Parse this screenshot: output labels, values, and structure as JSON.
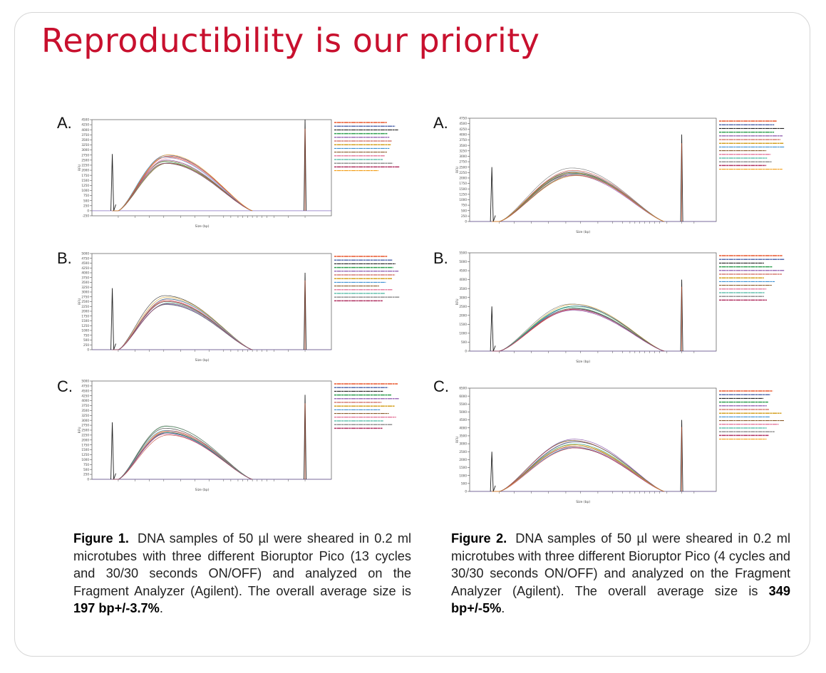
{
  "title": "Reproductibility is our priority",
  "colors": {
    "title": "#c8102e",
    "axis": "#555555",
    "peak": "#222222",
    "palette": [
      "#e8552a",
      "#1f3a93",
      "#222222",
      "#2e9e4f",
      "#7b3fa0",
      "#c0392b",
      "#d4a020",
      "#3b8fd1",
      "#8a5a2b",
      "#e67ea0",
      "#16a085",
      "#6b6b6b",
      "#b03060",
      "#f39c12"
    ]
  },
  "figures": [
    {
      "caption": {
        "label": "Figure 1.",
        "text_before": "DNA samples of 50 µl were sheared in 0.2 ml microtubes with three different Bioruptor Pico (13 cycles and 30/30 seconds ON/OFF) and analyzed on the Fragment Analyzer (Agilent). The overall average size is ",
        "highlight": "197 bp+/-3.7%",
        "text_after": "."
      },
      "panels": [
        {
          "label": "A."
        },
        {
          "label": "B."
        },
        {
          "label": "C."
        }
      ]
    },
    {
      "caption": {
        "label": "Figure 2.",
        "text_before": "DNA samples of 50 µl were sheared in 0.2 ml microtubes with three different Bioruptor Pico (4 cycles and 30/30 seconds ON/OFF) and analyzed on the Fragment Analyzer (Agilent). The overall average size is ",
        "highlight": "349 bp+/-5%",
        "text_after": "."
      },
      "panels": [
        {
          "label": "A."
        },
        {
          "label": "B."
        },
        {
          "label": "C."
        }
      ]
    }
  ],
  "chart_data": [
    {
      "type": "line",
      "figure": "Figure 1",
      "panel": "A.",
      "ylabel": "RFU",
      "xlabel": "Size (bp)",
      "ylim": [
        -250,
        4500
      ],
      "y_ticks": [
        -250,
        0,
        250,
        500,
        750,
        1000,
        1250,
        1500,
        1750,
        2000,
        2250,
        2500,
        2750,
        3000,
        3250,
        3500,
        3750,
        4000,
        4250,
        4500
      ],
      "lower_marker_peak": 2800,
      "upper_marker_peak": 4500,
      "smear_peak": 2550,
      "sample_count": 14
    },
    {
      "type": "line",
      "figure": "Figure 1",
      "panel": "B.",
      "ylabel": "RFU",
      "xlabel": "Size (bp)",
      "ylim": [
        0,
        5000
      ],
      "y_ticks": [
        0,
        250,
        500,
        750,
        1000,
        1250,
        1500,
        1750,
        2000,
        2250,
        2500,
        2750,
        3000,
        3250,
        3500,
        3750,
        4000,
        4250,
        4500,
        4750,
        5000
      ],
      "lower_marker_peak": 3200,
      "upper_marker_peak": 4000,
      "smear_peak": 2600,
      "sample_count": 13
    },
    {
      "type": "line",
      "figure": "Figure 1",
      "panel": "C.",
      "ylabel": "RFU",
      "xlabel": "Size (bp)",
      "ylim": [
        0,
        5000
      ],
      "y_ticks": [
        0,
        250,
        500,
        750,
        1000,
        1250,
        1500,
        1750,
        2000,
        2250,
        2500,
        2750,
        3000,
        3250,
        3500,
        3750,
        4000,
        4250,
        4500,
        4750,
        5000
      ],
      "lower_marker_peak": 2900,
      "upper_marker_peak": 4300,
      "smear_peak": 2500,
      "sample_count": 13
    },
    {
      "type": "line",
      "figure": "Figure 2",
      "panel": "A.",
      "ylabel": "RFU",
      "xlabel": "Size (bp)",
      "ylim": [
        0,
        4750
      ],
      "y_ticks": [
        0,
        250,
        500,
        750,
        1000,
        1250,
        1500,
        1750,
        2000,
        2250,
        2500,
        2750,
        3000,
        3250,
        3500,
        3750,
        4000,
        4250,
        4500,
        4750
      ],
      "lower_marker_peak": 2500,
      "upper_marker_peak": 4000,
      "smear_peak": 2300,
      "sample_count": 14
    },
    {
      "type": "line",
      "figure": "Figure 2",
      "panel": "B.",
      "ylabel": "RFU",
      "xlabel": "Size (bp)",
      "ylim": [
        0,
        5500
      ],
      "y_ticks": [
        0,
        500,
        1000,
        1500,
        2000,
        2500,
        3000,
        3500,
        4000,
        4500,
        5000,
        5500
      ],
      "lower_marker_peak": 2500,
      "upper_marker_peak": 4000,
      "smear_peak": 2500,
      "sample_count": 13
    },
    {
      "type": "line",
      "figure": "Figure 2",
      "panel": "C.",
      "ylabel": "RFU",
      "xlabel": "Size (bp)",
      "ylim": [
        0,
        6500
      ],
      "y_ticks": [
        0,
        500,
        1000,
        1500,
        2000,
        2500,
        3000,
        3500,
        4000,
        4500,
        5000,
        5500,
        6000,
        6500
      ],
      "lower_marker_peak": 2500,
      "upper_marker_peak": 4500,
      "smear_peak": 3000,
      "sample_count": 14
    }
  ]
}
